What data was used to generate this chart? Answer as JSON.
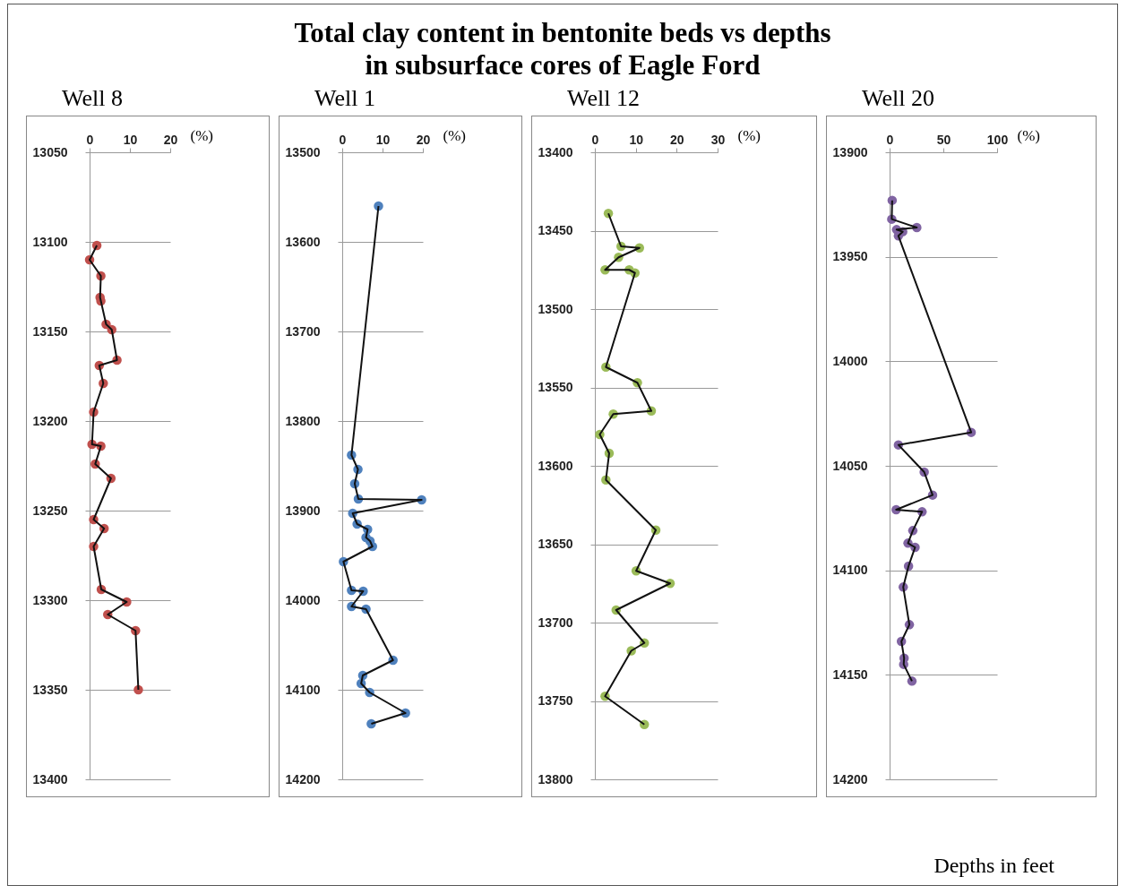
{
  "chart_data": [
    {
      "type": "other",
      "title": "Total clay content in bentonite beds vs depths\nin subsurface cores of Eagle Ford"
    },
    {
      "type": "line",
      "title": "Well 8",
      "xlabel": "(%)",
      "xlim": [
        0,
        20
      ],
      "xticks": [
        0,
        10,
        20
      ],
      "ylim": [
        13400,
        13050
      ],
      "yticks": [
        13050,
        13100,
        13150,
        13200,
        13250,
        13300,
        13350,
        13400
      ],
      "grid": "y",
      "marker": "circle",
      "line_style": "solid",
      "legend": false,
      "series": [
        {
          "color": "#c0504d",
          "x": [
            1.8,
            0,
            2.8,
            2.6,
            2.8,
            4.1,
            5.5,
            6.8,
            2.4,
            3.4,
            1.0,
            0.6,
            2.8,
            1.4,
            5.3,
            1.0,
            3.6,
            1.0,
            2.9,
            9.2,
            4.5,
            11.4,
            12.1
          ],
          "values": [
            13102,
            13110,
            13119,
            13131,
            13133,
            13146,
            13149,
            13166,
            13169,
            13179,
            13195,
            13213,
            13214,
            13224,
            13232,
            13255,
            13260,
            13270,
            13294,
            13301,
            13308,
            13317,
            13350
          ]
        }
      ]
    },
    {
      "type": "line",
      "title": "Well 1",
      "xlabel": "(%)",
      "xlim": [
        0,
        20
      ],
      "xticks": [
        0,
        10,
        20
      ],
      "ylim": [
        14200,
        13500
      ],
      "yticks": [
        13500,
        13600,
        13700,
        13800,
        13900,
        14000,
        14100,
        14200
      ],
      "grid": "y",
      "marker": "circle",
      "line_style": "solid",
      "legend": false,
      "series": [
        {
          "color": "#4f81bd",
          "x": [
            9.0,
            2.3,
            3.9,
            3.1,
            4.0,
            19.7,
            2.6,
            3.7,
            6.3,
            5.9,
            6.9,
            7.5,
            0.3,
            2.3,
            5.2,
            2.3,
            5.9,
            12.6,
            5.1,
            4.7,
            6.8,
            15.7,
            7.2
          ],
          "values": [
            13560,
            13838,
            13854,
            13870,
            13887,
            13888,
            13903,
            13915,
            13921,
            13930,
            13934,
            13940,
            13957,
            13989,
            13990,
            14007,
            14010,
            14067,
            14084,
            14093,
            14103,
            14126,
            14138
          ]
        }
      ]
    },
    {
      "type": "line",
      "title": "Well 12",
      "xlabel": "(%)",
      "xlim": [
        0,
        30
      ],
      "xticks": [
        0,
        10,
        20,
        30
      ],
      "ylim": [
        13800,
        13400
      ],
      "yticks": [
        13400,
        13450,
        13500,
        13550,
        13600,
        13650,
        13700,
        13750,
        13800
      ],
      "grid": "y",
      "marker": "circle",
      "line_style": "solid",
      "legend": false,
      "series": [
        {
          "color": "#9bbb59",
          "x": [
            3.3,
            6.4,
            10.9,
            5.8,
            2.5,
            8.4,
            9.8,
            2.7,
            10.4,
            13.8,
            4.5,
            1.2,
            3.5,
            2.7,
            14.9,
            10.1,
            18.4,
            5.2,
            12.1,
            8.9,
            2.5,
            12.1
          ],
          "values": [
            13439,
            13460,
            13461,
            13467,
            13475,
            13475,
            13477,
            13537,
            13547,
            13565,
            13567,
            13580,
            13592,
            13609,
            13641,
            13667,
            13675,
            13692,
            13713,
            13718,
            13747,
            13765
          ]
        }
      ]
    },
    {
      "type": "line",
      "title": "Well 20",
      "xlabel": "(%)",
      "xlim": [
        0,
        100
      ],
      "xticks": [
        0,
        50,
        100
      ],
      "ylim": [
        14200,
        13900
      ],
      "yticks": [
        13900,
        13950,
        14000,
        14050,
        14100,
        14150,
        14200
      ],
      "grid": "y",
      "marker": "circle",
      "line_style": "solid",
      "legend": false,
      "annotations": [
        "Depths in feet"
      ],
      "series": [
        {
          "color": "#8064a2",
          "x": [
            2.4,
            2.0,
            25.3,
            6.5,
            12.2,
            8.2,
            75.9,
            8.2,
            32.2,
            40.0,
            6.1,
            30.2,
            21.6,
            17.1,
            23.7,
            17.6,
            12.7,
            18.4,
            11.0,
            13.5,
            13.1,
            20.8
          ],
          "values": [
            13923,
            13932,
            13936,
            13937,
            13938,
            13940,
            14034,
            14040,
            14053,
            14064,
            14071,
            14072,
            14081,
            14087,
            14089,
            14098,
            14108,
            14126,
            14134,
            14142,
            14145,
            14153
          ]
        }
      ]
    }
  ]
}
